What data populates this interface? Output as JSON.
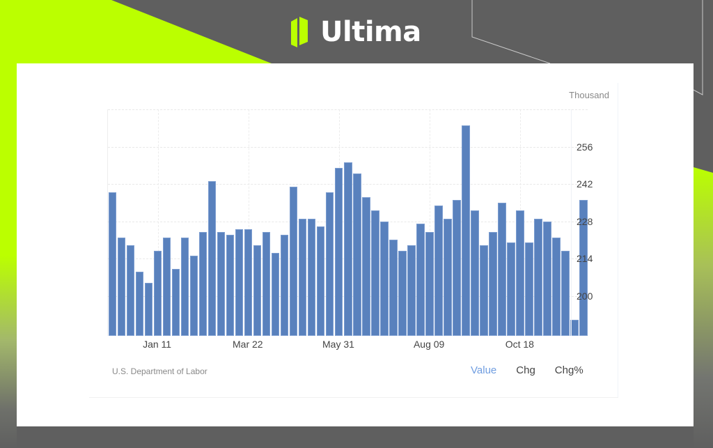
{
  "brand": {
    "name": "Ultima",
    "accent_color": "#bbff00",
    "background_color": "#5f5f5f"
  },
  "chart_data": {
    "type": "bar",
    "title": "",
    "unit_label": "Thousand",
    "xlabel": "",
    "ylabel": "Thousand",
    "ylim": [
      185,
      270
    ],
    "yticks": [
      200,
      214,
      228,
      242,
      256
    ],
    "xtick_labels": [
      {
        "label": "Jan 11",
        "index": 5
      },
      {
        "label": "Mar 22",
        "index": 15
      },
      {
        "label": "May 31",
        "index": 25
      },
      {
        "label": "Aug 09",
        "index": 35
      },
      {
        "label": "Oct 18",
        "index": 45
      }
    ],
    "grid": true,
    "legend": "none",
    "color": "#5981bd",
    "series": [
      {
        "name": "Value",
        "values": [
          239,
          222,
          219,
          209,
          205,
          217,
          222,
          210,
          222,
          215,
          224,
          243,
          224,
          223,
          225,
          225,
          219,
          224,
          216,
          223,
          241,
          229,
          229,
          226,
          239,
          248,
          250,
          246,
          237,
          232,
          228,
          221,
          217,
          219,
          227,
          224,
          234,
          229,
          236,
          264,
          232,
          219,
          224,
          235,
          220,
          232,
          220,
          229,
          228,
          222,
          217,
          191,
          236
        ]
      }
    ]
  },
  "footer": {
    "source": "U.S. Department of Labor",
    "tabs": [
      {
        "label": "Value",
        "active": true
      },
      {
        "label": "Chg",
        "active": false
      },
      {
        "label": "Chg%",
        "active": false
      }
    ]
  }
}
